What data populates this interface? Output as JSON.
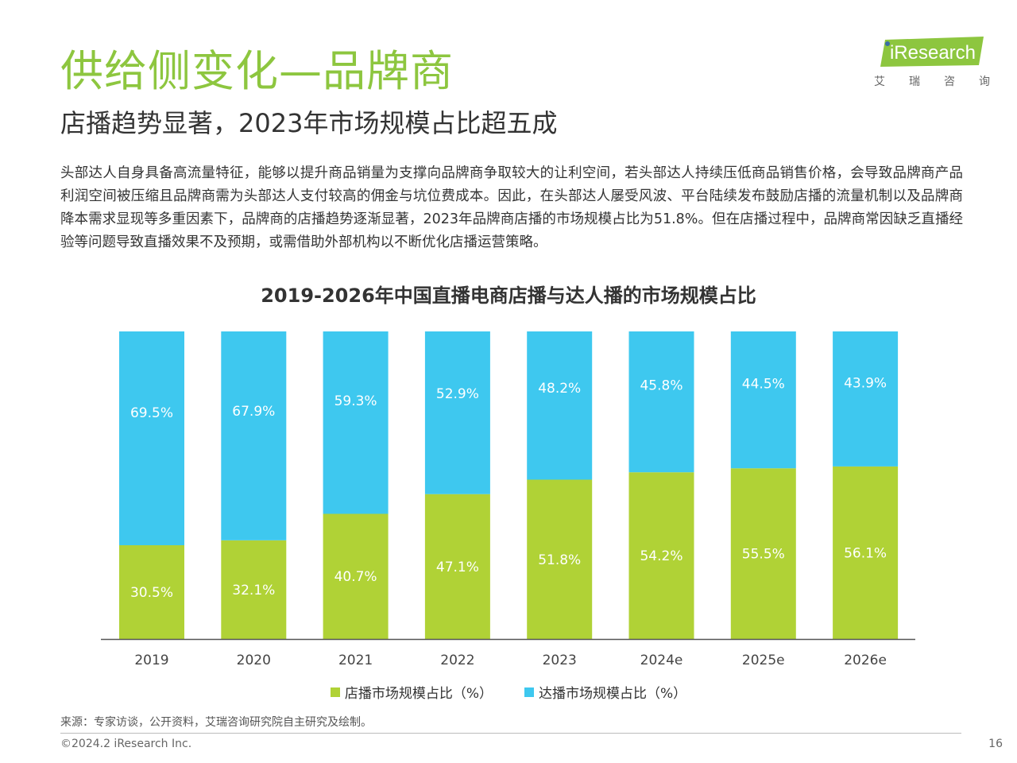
{
  "header": {
    "title": "供给侧变化—品牌商",
    "subtitle": "店播趋势显著，2023年市场规模占比超五成"
  },
  "logo": {
    "wordmark": "iResearch",
    "chinese_chars": [
      "艾",
      "瑞",
      "咨",
      "询"
    ],
    "color": "#8dc63f"
  },
  "body": {
    "paragraph": "头部达人自身具备高流量特征，能够以提升商品销量为支撑向品牌商争取较大的让利空间，若头部达人持续压低商品销售价格，会导致品牌商产品利润空间被压缩且品牌商需为头部达人支付较高的佣金与坑位费成本。因此，在头部达人屡受风波、平台陆续发布鼓励店播的流量机制以及品牌商降本需求显现等多重因素下，品牌商的店播趋势逐渐显著，2023年品牌商店播的市场规模占比为51.8%。但在店播过程中，品牌商常因缺乏直播经验等问题导致直播效果不及预期，或需借助外部机构以不断优化店播运营策略。"
  },
  "chart_data": {
    "type": "bar",
    "stacked": true,
    "percent_stacked": true,
    "title": "2019-2026年中国直播电商店播与达人播的市场规模占比",
    "categories": [
      "2019",
      "2020",
      "2021",
      "2022",
      "2023",
      "2024e",
      "2025e",
      "2026e"
    ],
    "series": [
      {
        "name": "店播市场规模占比（%）",
        "color": "#b0d236",
        "values": [
          30.5,
          32.1,
          40.7,
          47.1,
          51.8,
          54.2,
          55.5,
          56.1
        ],
        "labels": [
          "30.5%",
          "32.1%",
          "40.7%",
          "47.1%",
          "51.8%",
          "54.2%",
          "55.5%",
          "56.1%"
        ]
      },
      {
        "name": "达播市场规模占比（%）",
        "color": "#3ec8ef",
        "values": [
          69.5,
          67.9,
          59.3,
          52.9,
          48.2,
          45.8,
          44.5,
          43.9
        ],
        "labels": [
          "69.5%",
          "67.9%",
          "59.3%",
          "52.9%",
          "48.2%",
          "45.8%",
          "44.5%",
          "43.9%"
        ]
      }
    ],
    "ylim": [
      0,
      100
    ],
    "grid": false,
    "legend_position": "bottom"
  },
  "footer": {
    "source": "来源：专家访谈，公开资料，艾瑞咨询研究院自主研究及绘制。",
    "copyright": "©2024.2 iResearch Inc.",
    "page_number": "16"
  }
}
